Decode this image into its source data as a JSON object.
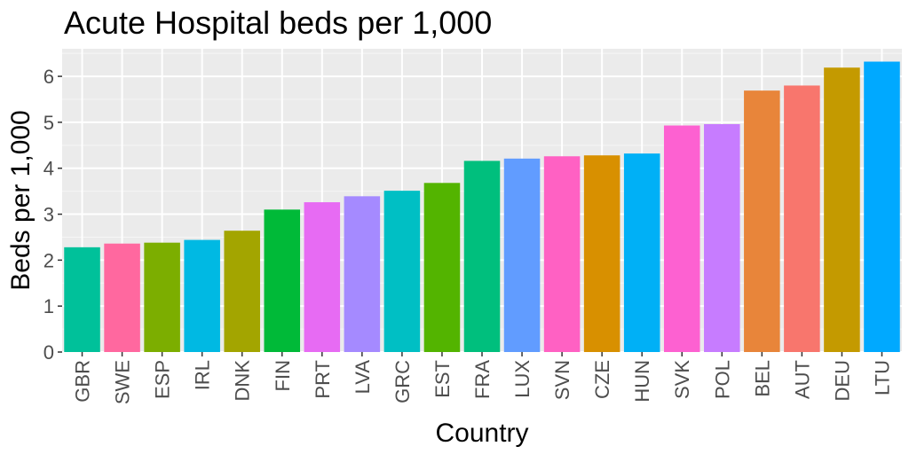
{
  "chart_data": {
    "type": "bar",
    "title": "Acute Hospital beds per 1,000",
    "xlabel": "Country",
    "ylabel": "Beds per 1,000",
    "ylim": [
      0,
      6.6
    ],
    "yticks": [
      0,
      1,
      2,
      3,
      4,
      5,
      6
    ],
    "ytick_labels": [
      "0",
      "1",
      "2",
      "3",
      "4",
      "5",
      "6"
    ],
    "grid": true,
    "legend": "none",
    "categories": [
      "GBR",
      "SWE",
      "ESP",
      "IRL",
      "DNK",
      "FIN",
      "PRT",
      "LVA",
      "GRC",
      "EST",
      "FRA",
      "LUX",
      "SVN",
      "CZE",
      "HUN",
      "SVK",
      "POL",
      "BEL",
      "AUT",
      "DEU",
      "LTU"
    ],
    "values": [
      2.28,
      2.36,
      2.38,
      2.44,
      2.64,
      3.1,
      3.26,
      3.39,
      3.51,
      3.68,
      4.16,
      4.21,
      4.26,
      4.28,
      4.32,
      4.93,
      4.96,
      5.69,
      5.8,
      6.19,
      6.32
    ],
    "colors": [
      "#00C19A",
      "#FF689F",
      "#7CAE00",
      "#00B9E3",
      "#A3A500",
      "#00BA38",
      "#E76BF3",
      "#A58AFF",
      "#00BFC4",
      "#53B400",
      "#00BF7D",
      "#619CFF",
      "#FF61C3",
      "#D89000",
      "#00B0F6",
      "#FD61D1",
      "#C77CFF",
      "#E8853A",
      "#F8766D",
      "#C49A00",
      "#00A9FF"
    ]
  }
}
